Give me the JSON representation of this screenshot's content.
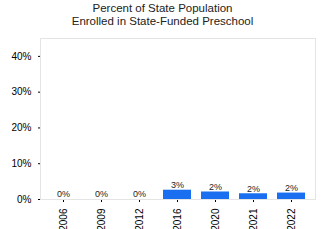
{
  "chart_data": {
    "type": "bar",
    "title": "Percent of State Population\nEnrolled in State-Funded Preschool",
    "categories": [
      "2006",
      "2009",
      "2012",
      "2016",
      "2020",
      "2021",
      "2022"
    ],
    "values": [
      0,
      0,
      0,
      2.6,
      2.1,
      1.6,
      1.8
    ],
    "value_labels": [
      "0%",
      "0%",
      "0%",
      "3%",
      "2%",
      "2%",
      "2%"
    ],
    "data_labels": true,
    "color": "#1a6ff0",
    "ylim": [
      0,
      45
    ],
    "yticks": [
      {
        "value": 0,
        "label": "0%"
      },
      {
        "value": 10,
        "label": "10%"
      },
      {
        "value": 20,
        "label": "20%"
      },
      {
        "value": 30,
        "label": "30%"
      },
      {
        "value": 40,
        "label": "40%"
      }
    ],
    "grid": false
  }
}
